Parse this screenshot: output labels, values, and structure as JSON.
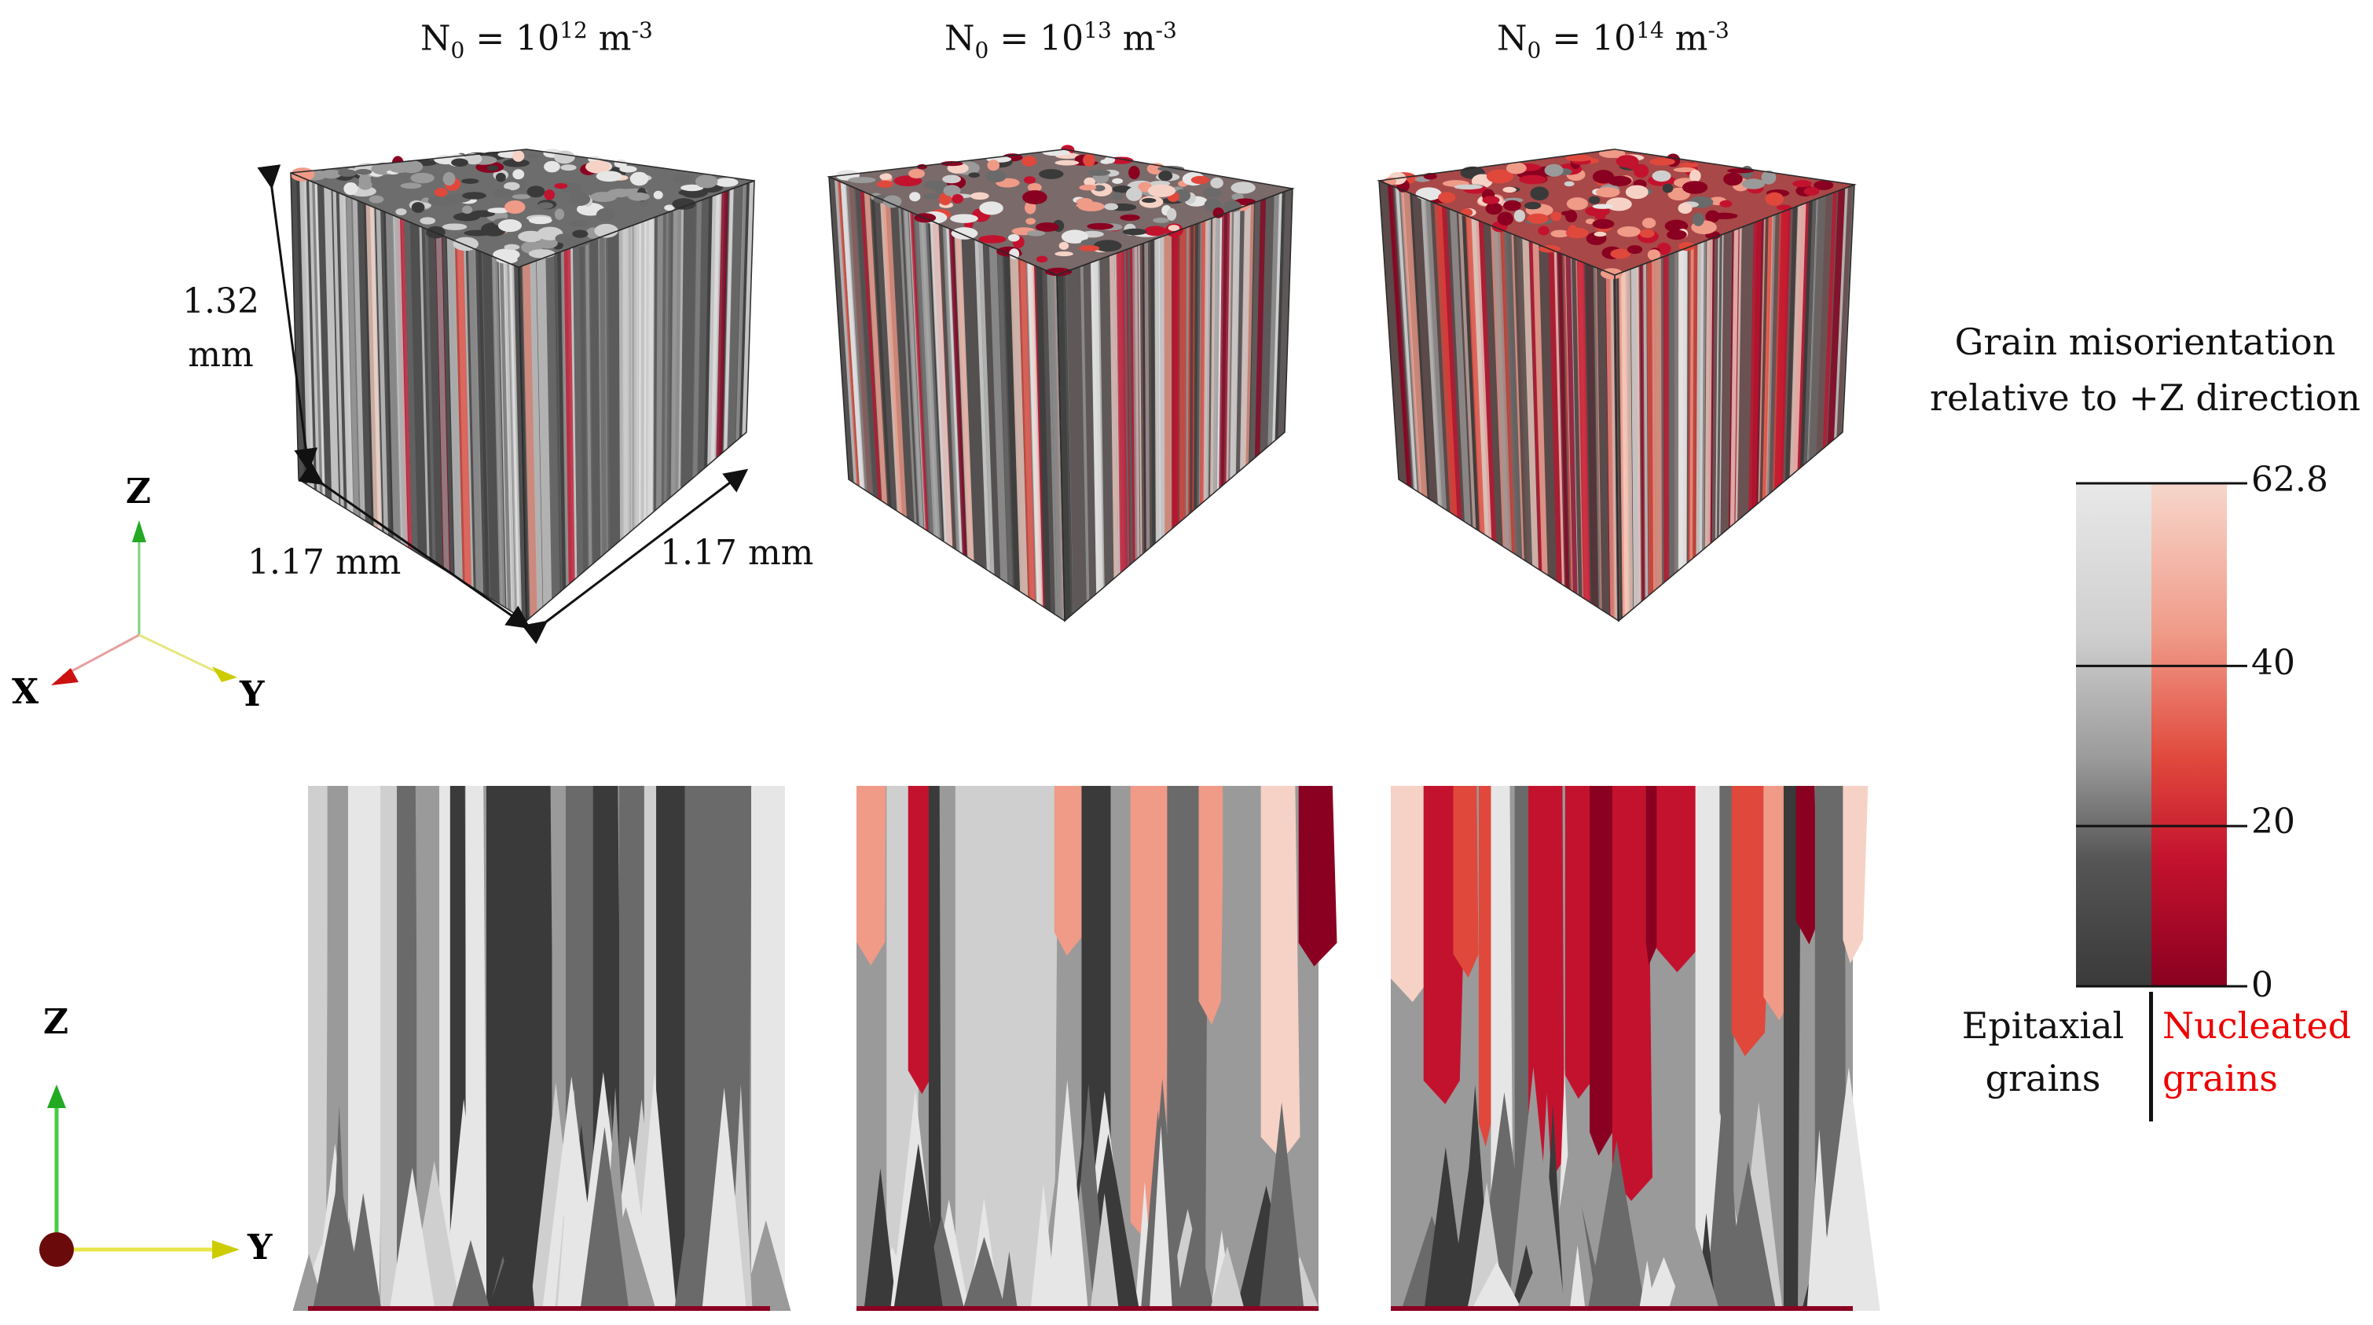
{
  "titles": [
    {
      "base": "N",
      "sub": "0",
      "mid": " = 10",
      "sup": "12",
      "unit": " m",
      "unit_sup": "-3"
    },
    {
      "base": "N",
      "sub": "0",
      "mid": " = 10",
      "sup": "13",
      "unit": " m",
      "unit_sup": "-3"
    },
    {
      "base": "N",
      "sub": "0",
      "mid": " = 10",
      "sup": "14",
      "unit": " m",
      "unit_sup": "-3"
    }
  ],
  "dimensions": {
    "height_value": "1.32",
    "height_unit": "mm",
    "width_x": "1.17 mm",
    "width_y": "1.17 mm"
  },
  "axes_3d": {
    "z": "Z",
    "x": "X",
    "y": "Y"
  },
  "axes_2d": {
    "z": "Z",
    "y": "Y"
  },
  "colorbar": {
    "title_line1": "Grain misorientation",
    "title_line2": "relative to +Z direction",
    "ticks": [
      "62.8",
      "40",
      "20",
      "0"
    ],
    "tick_values": [
      62.8,
      40,
      20,
      0
    ],
    "max_value": 62.8,
    "left_label_line1": "Epitaxial",
    "left_label_line2": "grains",
    "right_label_line1": "Nucleated",
    "right_label_line2": "grains",
    "epitaxial_color": "#222222",
    "nucleated_color": "#ee0000",
    "gray_stops": [
      "#e6e6e6",
      "#cfcfcf",
      "#9a9a9a",
      "#6a6a6a",
      "#3a3a3a"
    ],
    "red_stops": [
      "#f6d2c6",
      "#f09a88",
      "#e0483c",
      "#c3122e",
      "#8a0020"
    ]
  }
}
